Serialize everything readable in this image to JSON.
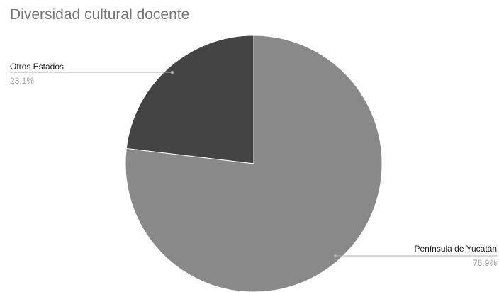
{
  "chart_data": {
    "type": "pie",
    "title": "Diversidad cultural docente",
    "slices": [
      {
        "label": "Otros Estados",
        "value": 23.1,
        "percent_label": "23,1%",
        "color": "#444444"
      },
      {
        "label": "Península de Yucatán",
        "value": 76.9,
        "percent_label": "76,9%",
        "color": "#898989"
      }
    ],
    "legend": "none"
  }
}
